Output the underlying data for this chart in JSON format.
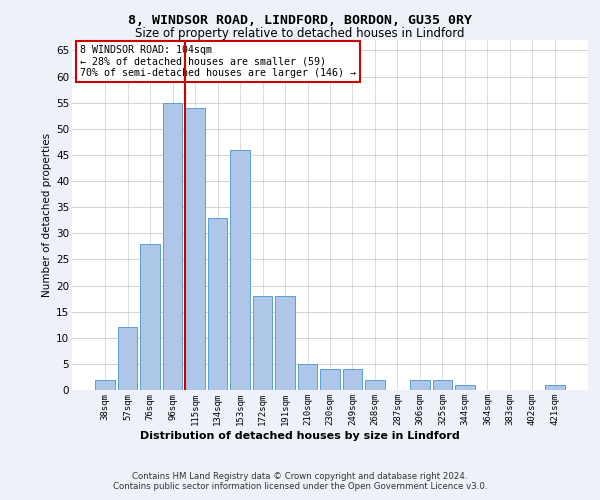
{
  "title1": "8, WINDSOR ROAD, LINDFORD, BORDON, GU35 0RY",
  "title2": "Size of property relative to detached houses in Lindford",
  "xlabel": "Distribution of detached houses by size in Lindford",
  "ylabel": "Number of detached properties",
  "bar_labels": [
    "38sqm",
    "57sqm",
    "76sqm",
    "96sqm",
    "115sqm",
    "134sqm",
    "153sqm",
    "172sqm",
    "191sqm",
    "210sqm",
    "230sqm",
    "249sqm",
    "268sqm",
    "287sqm",
    "306sqm",
    "325sqm",
    "344sqm",
    "364sqm",
    "383sqm",
    "402sqm",
    "421sqm"
  ],
  "bar_values": [
    2,
    12,
    28,
    55,
    54,
    33,
    46,
    18,
    18,
    5,
    4,
    4,
    2,
    0,
    2,
    2,
    1,
    0,
    0,
    0,
    1
  ],
  "bar_color": "#aec6e8",
  "bar_edge_color": "#5a9fd4",
  "vline_x_index": 4,
  "vline_color": "#cc0000",
  "annotation_text": "8 WINDSOR ROAD: 104sqm\n← 28% of detached houses are smaller (59)\n70% of semi-detached houses are larger (146) →",
  "annotation_box_color": "#ffffff",
  "annotation_box_edge_color": "#cc0000",
  "ylim": [
    0,
    67
  ],
  "yticks": [
    0,
    5,
    10,
    15,
    20,
    25,
    30,
    35,
    40,
    45,
    50,
    55,
    60,
    65
  ],
  "footer1": "Contains HM Land Registry data © Crown copyright and database right 2024.",
  "footer2": "Contains public sector information licensed under the Open Government Licence v3.0.",
  "bg_color": "#eef2f8",
  "plot_bg_color": "#ffffff"
}
